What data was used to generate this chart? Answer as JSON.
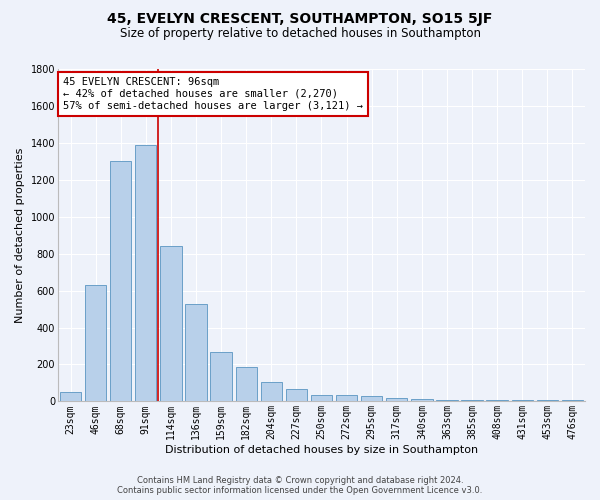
{
  "title": "45, EVELYN CRESCENT, SOUTHAMPTON, SO15 5JF",
  "subtitle": "Size of property relative to detached houses in Southampton",
  "xlabel": "Distribution of detached houses by size in Southampton",
  "ylabel": "Number of detached properties",
  "bar_labels": [
    "23sqm",
    "46sqm",
    "68sqm",
    "91sqm",
    "114sqm",
    "136sqm",
    "159sqm",
    "182sqm",
    "204sqm",
    "227sqm",
    "250sqm",
    "272sqm",
    "295sqm",
    "317sqm",
    "340sqm",
    "363sqm",
    "385sqm",
    "408sqm",
    "431sqm",
    "453sqm",
    "476sqm"
  ],
  "bar_values": [
    50,
    630,
    1300,
    1390,
    840,
    525,
    270,
    185,
    105,
    65,
    35,
    35,
    30,
    20,
    15,
    10,
    10,
    10,
    5,
    5,
    5
  ],
  "bar_color": "#b8d0ea",
  "bar_edgecolor": "#6aa0c8",
  "bar_width": 0.85,
  "ylim": [
    0,
    1800
  ],
  "yticks": [
    0,
    200,
    400,
    600,
    800,
    1000,
    1200,
    1400,
    1600,
    1800
  ],
  "red_line_x": 3.5,
  "red_line_color": "#cc0000",
  "annotation_line1": "45 EVELYN CRESCENT: 96sqm",
  "annotation_line2": "← 42% of detached houses are smaller (2,270)",
  "annotation_line3": "57% of semi-detached houses are larger (3,121) →",
  "bg_color": "#eef2fa",
  "plot_bg_color": "#eef2fa",
  "footer1": "Contains HM Land Registry data © Crown copyright and database right 2024.",
  "footer2": "Contains public sector information licensed under the Open Government Licence v3.0.",
  "grid_color": "#ffffff",
  "title_fontsize": 10,
  "subtitle_fontsize": 8.5,
  "annotation_fontsize": 7.5,
  "tick_fontsize": 7,
  "ylabel_fontsize": 8,
  "xlabel_fontsize": 8
}
